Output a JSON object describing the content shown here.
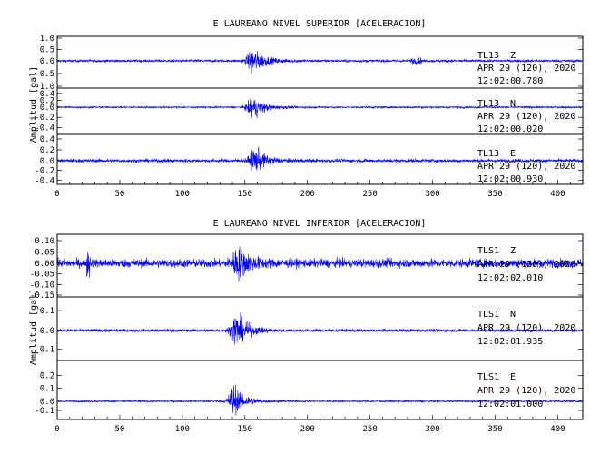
{
  "chart_data": [
    {
      "type": "line",
      "title": "E LAUREANO NIVEL SUPERIOR [ACELERACION]",
      "ylabel": "Amplitud [gal]",
      "xlim": [
        0,
        420
      ],
      "xticks": [
        "0",
        "50",
        "100",
        "150",
        "200",
        "250",
        "300",
        "350",
        "400"
      ],
      "trace_color": "#0000ff",
      "series": [
        {
          "station": "TL13",
          "component": "Z",
          "date": "APR 29 (120), 2020",
          "time": "12:02:00.780",
          "ylim": [
            -1.0,
            1.0
          ],
          "yticks": [
            "1.0",
            "0.5",
            "0.0",
            "-0.5",
            "-1.0"
          ],
          "noise": 0.08,
          "event_time": 155,
          "event_peak": 0.95
        },
        {
          "station": "TL13",
          "component": "N",
          "date": "APR 29 (120), 2020",
          "time": "12:02:00.020",
          "ylim": [
            -0.5,
            0.5
          ],
          "yticks": [
            "0.4",
            "0.2",
            "0.0",
            "-0.2",
            "-0.4"
          ],
          "noise": 0.03,
          "event_time": 155,
          "event_peak": 0.45
        },
        {
          "station": "TL13",
          "component": "E",
          "date": "APR 29 (120), 2020",
          "time": "12:02:00.930",
          "ylim": [
            -0.45,
            0.45
          ],
          "yticks": [
            "0.4",
            "0.2",
            "0.0",
            "-0.2",
            "-0.4"
          ],
          "noise": 0.05,
          "event_time": 157,
          "event_peak": 0.4
        }
      ]
    },
    {
      "type": "line",
      "title": "E LAUREANO NIVEL INFERIOR [ACELERACION]",
      "ylabel": "Amplitud [gal]",
      "xlim": [
        0,
        420
      ],
      "xticks": [
        "0",
        "50",
        "100",
        "150",
        "200",
        "250",
        "300",
        "350",
        "400"
      ],
      "trace_color": "#0000ff",
      "series": [
        {
          "station": "TLS1",
          "component": "Z",
          "date": "APR 29 (120), 2020",
          "time": "12:02:02.010",
          "ylim": [
            -0.15,
            0.12
          ],
          "yticks": [
            "0.10",
            "0.05",
            "0.00",
            "-0.05",
            "-0.10",
            "-0.15"
          ],
          "noise": 0.03,
          "event_time": 143,
          "event_peak": 0.12
        },
        {
          "station": "TLS1",
          "component": "N",
          "date": "APR 29 (120), 2020",
          "time": "12:02:01.935",
          "ylim": [
            -0.15,
            0.16
          ],
          "yticks": [
            "0.1",
            "0.0",
            "-0.1"
          ],
          "noise": 0.012,
          "event_time": 142,
          "event_peak": 0.15
        },
        {
          "station": "TLS1",
          "component": "E",
          "date": "APR 29 (120), 2020",
          "time": "12:02:01.000",
          "ylim": [
            -0.18,
            0.3
          ],
          "yticks": [
            "0.2",
            "0.1",
            "0.0",
            "-0.1"
          ],
          "noise": 0.012,
          "event_time": 140,
          "event_peak": 0.25
        }
      ]
    }
  ]
}
